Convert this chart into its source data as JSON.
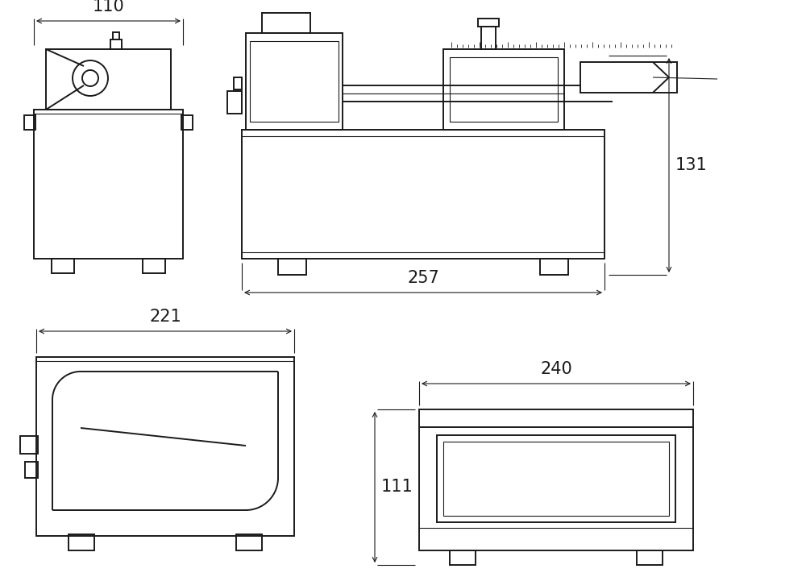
{
  "bg_color": "#ffffff",
  "line_color": "#1a1a1a",
  "line_width": 1.4,
  "thin_lw": 0.8,
  "dim_110": "110",
  "dim_257": "257",
  "dim_131": "131",
  "dim_221": "221",
  "dim_111": "111",
  "dim_240": "240",
  "font_size": 15,
  "arrow_scale": 10
}
